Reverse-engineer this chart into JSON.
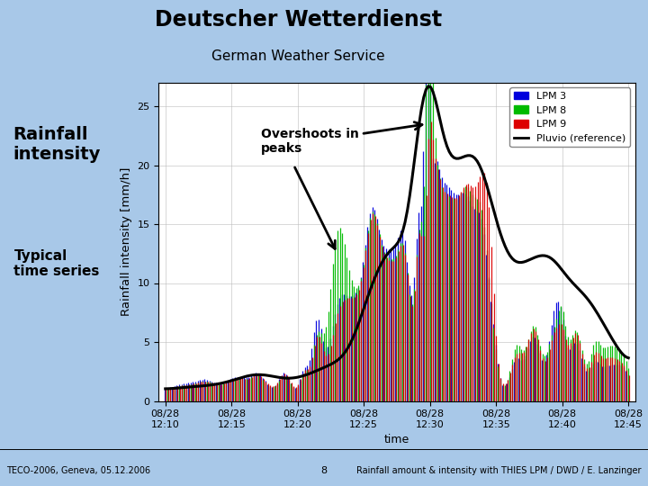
{
  "title_main": "Deutscher Wetterdienst",
  "title_sub": "German Weather Service",
  "ylabel": "Rainfall intensity [mm/h]",
  "xlabel": "time",
  "ylim": [
    0,
    27
  ],
  "yticks": [
    0,
    5,
    10,
    15,
    20,
    25
  ],
  "annotation_text": "Overshoots in\npeaks",
  "left_label1": "Rainfall\nintensity",
  "left_label2": "Typical\ntime series",
  "footer_left": "TECO-2006, Geneva, 05.12.2006",
  "footer_center": "8",
  "footer_right": "Rainfall amount & intensity with THIES LPM / DWD / E. Lanzinger",
  "legend": [
    "LPM 3",
    "LPM 8",
    "LPM 9",
    "Pluvio (reference)"
  ],
  "colors": {
    "LPM3": "#0000dd",
    "LPM8": "#00bb00",
    "LPM9": "#dd0000",
    "Pluvio": "#000000"
  },
  "bg_header": "#a8c8e8",
  "bg_left_panel": "#c0d4ec",
  "bg_plot": "#ffffff",
  "tick_labels": [
    "08/28\n12:10",
    "08/28\n12:15",
    "08/28\n12:20",
    "08/28\n12:25",
    "08/28\n12:30",
    "08/28\n12:35",
    "08/28\n12:40",
    "08/28\n12:45"
  ]
}
